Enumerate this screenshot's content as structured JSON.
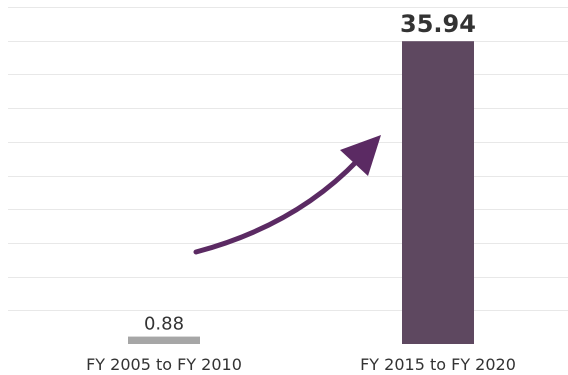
{
  "chart_data": {
    "type": "bar",
    "categories": [
      "FY 2005 to FY 2010",
      "FY 2015 to FY 2020"
    ],
    "values": [
      0.88,
      35.94
    ],
    "data_labels": [
      "0.88",
      "35.94"
    ],
    "ylim": [
      0,
      40
    ],
    "grid": true,
    "legend": "none",
    "bar_colors": [
      "#a6a6a6",
      "#5e4860"
    ],
    "arrow_color": "#5b2a63",
    "grid_color": "#e8e8e8",
    "title": "",
    "xlabel": "",
    "ylabel": ""
  }
}
